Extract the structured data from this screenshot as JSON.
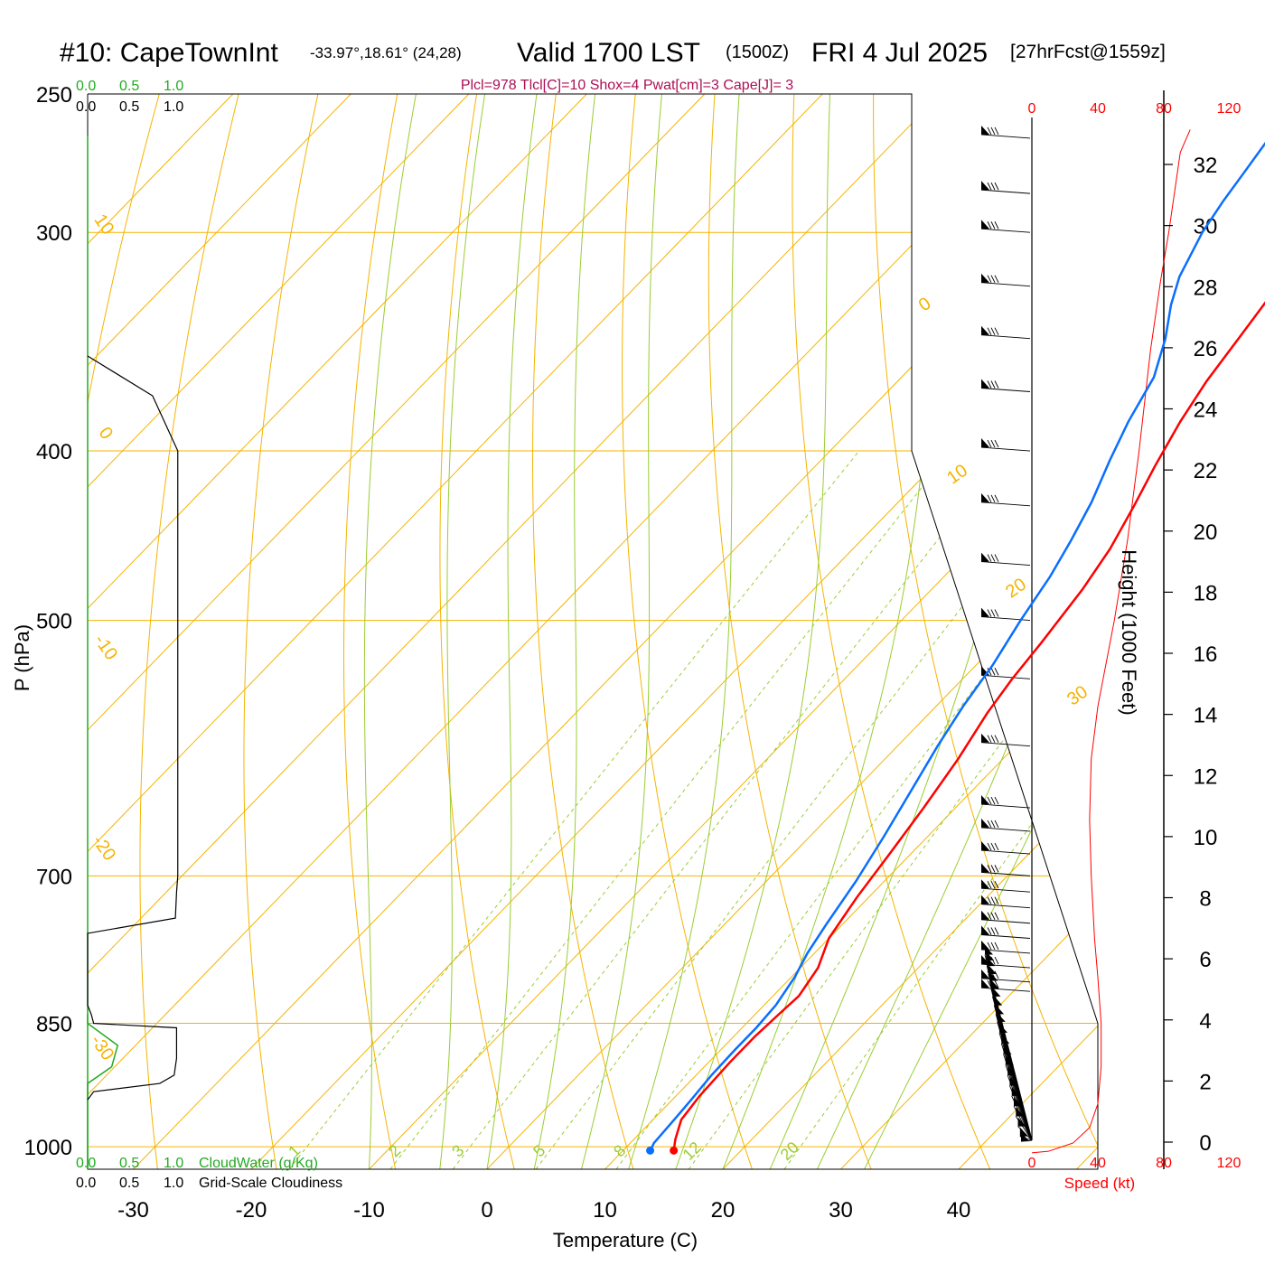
{
  "header": {
    "station": "#10: CapeTownInt",
    "coords": "-33.97°,18.61° (24,28)",
    "valid": "Valid 1700 LST",
    "utc": "(1500Z)",
    "date": "FRI 4 Jul 2025",
    "forecast": "[27hrFcst@1559z]",
    "indices": "Plcl=978 Tlcl[C]=10 Shox=4 Pwat[cm]=3 Cape[J]= 3"
  },
  "colors": {
    "temperature": "#ff0000",
    "dewpoint": "#0a6eff",
    "isotherm": "#f5b400",
    "dry_adiabat": "#f5b400",
    "moist_adiabat": "#9acd32",
    "mixing_ratio": "#9acd32",
    "cloud_water": "#22aa22",
    "cloudiness": "#000000",
    "speed": "#ff0000"
  },
  "chart_data": {
    "type": "line",
    "title": "#10: CapeTownInt",
    "xlabel": "Temperature (C)",
    "ylabel": "P (hPa)",
    "xlim": [
      -33,
      36
    ],
    "ylim": [
      1030,
      250
    ],
    "y_scale": "log",
    "x_ticks": [
      -30,
      -20,
      -10,
      0,
      10,
      20,
      30,
      40
    ],
    "x_tick_labels": [
      "-30",
      "-20",
      "-10",
      "0",
      "10",
      "20",
      "30",
      "40"
    ],
    "y_ticks": [
      1000,
      850,
      700,
      500,
      400,
      300,
      250
    ],
    "y_tick_labels": [
      "1000",
      "850",
      "700",
      "500",
      "400",
      "300",
      "250"
    ],
    "isotherm_labels": [
      "10",
      "0",
      "-10",
      "-20",
      "-30",
      "0",
      "10",
      "20",
      "30"
    ],
    "mixing_ratio_values": [
      1,
      2,
      3,
      5,
      8,
      12,
      20
    ],
    "mixing_ratio_labels": [
      "1",
      "2",
      "3",
      "5",
      "8",
      "12",
      "20"
    ],
    "series": [
      {
        "name": "Temperature",
        "points": [
          [
            14.3,
            1005
          ],
          [
            13.5,
            990
          ],
          [
            12.4,
            965
          ],
          [
            12.0,
            935
          ],
          [
            11.8,
            895
          ],
          [
            11.8,
            865
          ],
          [
            12.0,
            840
          ],
          [
            12.2,
            820
          ],
          [
            11.5,
            790
          ],
          [
            10.0,
            760
          ],
          [
            9.0,
            720
          ],
          [
            8.2,
            680
          ],
          [
            7.3,
            640
          ],
          [
            6.2,
            600
          ],
          [
            4.9,
            565
          ],
          [
            4.2,
            540
          ],
          [
            3.7,
            515
          ],
          [
            2.8,
            480
          ],
          [
            1.8,
            455
          ],
          [
            0.3,
            430
          ],
          [
            -1.2,
            408
          ],
          [
            -2.7,
            385
          ],
          [
            -3.8,
            365
          ],
          [
            -4.6,
            345
          ],
          [
            -5.6,
            322
          ],
          [
            -6.6,
            300
          ],
          [
            -7.5,
            285
          ],
          [
            -7.9,
            275
          ],
          [
            -8.0,
            265
          ]
        ]
      },
      {
        "name": "Dewpoint",
        "points": [
          [
            12.3,
            1005
          ],
          [
            12.0,
            995
          ],
          [
            11.8,
            965
          ],
          [
            11.6,
            940
          ],
          [
            11.3,
            910
          ],
          [
            11.2,
            880
          ],
          [
            11.2,
            855
          ],
          [
            11.0,
            830
          ],
          [
            10.3,
            800
          ],
          [
            9.4,
            775
          ],
          [
            8.6,
            745
          ],
          [
            7.6,
            705
          ],
          [
            6.3,
            665
          ],
          [
            4.8,
            625
          ],
          [
            3.4,
            590
          ],
          [
            2.3,
            560
          ],
          [
            1.4,
            530
          ],
          [
            0.1,
            500
          ],
          [
            -1.0,
            472
          ],
          [
            -2.2,
            450
          ],
          [
            -3.6,
            428
          ],
          [
            -5.5,
            405
          ],
          [
            -7.1,
            385
          ],
          [
            -8.6,
            363
          ],
          [
            -10.8,
            345
          ],
          [
            -13.1,
            330
          ],
          [
            -14.7,
            318
          ],
          [
            -16.4,
            300
          ],
          [
            -17.2,
            288
          ],
          [
            -17.8,
            277
          ],
          [
            -18.5,
            265
          ]
        ]
      }
    ],
    "cloud_water_axis": [
      "0.0",
      "0.5",
      "1.0"
    ],
    "cloud_water_label": "CloudWater (g/Kg)",
    "cloudiness_axis": [
      "0.0",
      "0.5",
      "1.0"
    ],
    "cloudiness_label": "Grid-Scale Cloudiness",
    "cloud_water_profile": [
      [
        0.0,
        1030
      ],
      [
        0.0,
        940
      ],
      [
        0.0,
        920
      ],
      [
        0.2,
        900
      ],
      [
        0.25,
        875
      ],
      [
        0.0,
        850
      ],
      [
        0.0,
        840
      ]
    ],
    "cloudiness_profile": [
      [
        0.0,
        940
      ],
      [
        0.05,
        930
      ],
      [
        0.6,
        920
      ],
      [
        0.72,
        910
      ],
      [
        0.74,
        890
      ],
      [
        0.74,
        855
      ],
      [
        0.05,
        850
      ],
      [
        0.03,
        840
      ],
      [
        0.0,
        830
      ],
      [
        0.0,
        755
      ],
      [
        0.73,
        740
      ],
      [
        0.74,
        715
      ],
      [
        0.75,
        700
      ],
      [
        0.75,
        400
      ],
      [
        0.54,
        372
      ],
      [
        0.0,
        353
      ]
    ],
    "speed_axis": [
      "0",
      "40",
      "80",
      "120"
    ],
    "speed_label": "Speed (kt)",
    "wind_speed_profile": [
      [
        0,
        1008
      ],
      [
        10,
        1006
      ],
      [
        25,
        995
      ],
      [
        35,
        975
      ],
      [
        40,
        945
      ],
      [
        42,
        900
      ],
      [
        42,
        850
      ],
      [
        40,
        800
      ],
      [
        38,
        760
      ],
      [
        36,
        700
      ],
      [
        35,
        650
      ],
      [
        36,
        600
      ],
      [
        40,
        560
      ],
      [
        50,
        500
      ],
      [
        58,
        450
      ],
      [
        65,
        400
      ],
      [
        72,
        350
      ],
      [
        78,
        320
      ],
      [
        83,
        300
      ],
      [
        90,
        270
      ],
      [
        96,
        262
      ]
    ],
    "height_axis_label": "Height (1000 Feet)",
    "height_ticks": [
      0,
      2,
      4,
      6,
      8,
      10,
      12,
      14,
      16,
      18,
      20,
      22,
      24,
      26,
      28,
      30,
      32
    ],
    "height_tick_labels": [
      "0",
      "2",
      "4",
      "6",
      "8",
      "10",
      "12",
      "14",
      "16",
      "18",
      "20",
      "22",
      "24",
      "26",
      "28",
      "30",
      "32"
    ],
    "wind_barb_levels": [
      265,
      285,
      300,
      322,
      345,
      370,
      400,
      430,
      465,
      500,
      540,
      590,
      640,
      660,
      680,
      700,
      715,
      730,
      745,
      760,
      775,
      790,
      805,
      815,
      825,
      830,
      835,
      842,
      848,
      855,
      862,
      870,
      878,
      885,
      895,
      905,
      915,
      925,
      935,
      945,
      955,
      965,
      975,
      985,
      995,
      1000
    ]
  }
}
